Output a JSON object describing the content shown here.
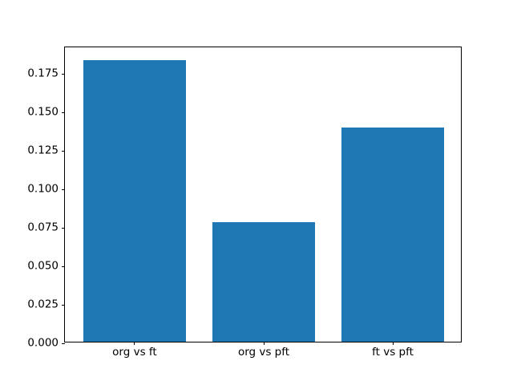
{
  "chart_data": {
    "type": "bar",
    "categories": [
      "org vs ft",
      "org vs pft",
      "ft vs pft"
    ],
    "values": [
      0.183,
      0.0775,
      0.139
    ],
    "title": "",
    "xlabel": "",
    "ylabel": "",
    "ylim": [
      0,
      0.1922
    ],
    "xlim": [
      -0.54,
      2.54
    ],
    "yticks": [
      0.0,
      0.025,
      0.05,
      0.075,
      0.1,
      0.125,
      0.15,
      0.175
    ],
    "ytick_labels": [
      "0.000",
      "0.025",
      "0.050",
      "0.075",
      "0.100",
      "0.125",
      "0.150",
      "0.175"
    ],
    "bar_color": "#1f77b4",
    "bar_width_fraction": 0.8,
    "grid": false,
    "legend": null,
    "spine_color": "#000000",
    "background_color": "#ffffff"
  }
}
